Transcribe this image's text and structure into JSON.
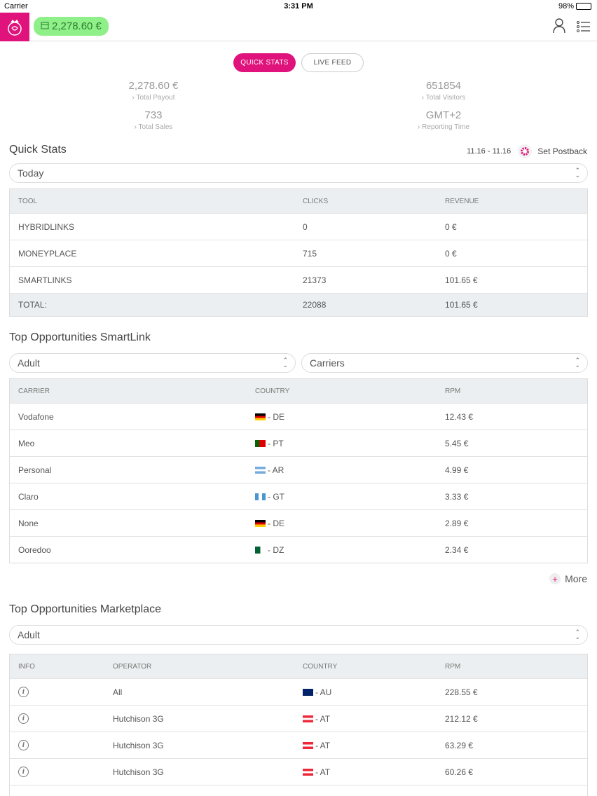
{
  "status_bar": {
    "carrier": "Carrier",
    "time": "3:31 PM",
    "battery": "98%"
  },
  "header": {
    "balance": "2,278.60 €",
    "icons": [
      "logo-icon",
      "user-icon",
      "menu-list-icon"
    ]
  },
  "tabs": {
    "quick_stats": "QUICK STATS",
    "live_feed": "LIVE FEED"
  },
  "summary": {
    "total_payout": {
      "value": "2,278.60 €",
      "label": "Total Payout"
    },
    "total_visitors": {
      "value": "651854",
      "label": "Total Visitors"
    },
    "total_sales": {
      "value": "733",
      "label": "Total Sales"
    },
    "reporting_time": {
      "value": "GMT+2",
      "label": "Reporting Time"
    }
  },
  "quick_stats": {
    "title": "Quick Stats",
    "date_range": "11.16 - 11.16",
    "set_postback": "Set Postback",
    "period": "Today",
    "headers": [
      "TOOL",
      "CLICKS",
      "REVENUE"
    ],
    "rows": [
      [
        "HYBRIDLINKS",
        "0",
        "0 €"
      ],
      [
        "MONEYPLACE",
        "715",
        "0 €"
      ],
      [
        "SMARTLINKS",
        "21373",
        "101.65 €"
      ]
    ],
    "total": [
      "TOTAL:",
      "22088",
      "101.65 €"
    ]
  },
  "smartlink": {
    "title": "Top Opportunities SmartLink",
    "filter_vertical": "Adult",
    "filter_type": "Carriers",
    "headers": [
      "CARRIER",
      "COUNTRY",
      "RPM"
    ],
    "rows": [
      [
        "Vodafone",
        " - DE",
        "12.43 €"
      ],
      [
        "Meo",
        " - PT",
        "5.45 €"
      ],
      [
        "Personal",
        " - AR",
        "4.99 €"
      ],
      [
        "Claro",
        " - GT",
        "3.33 €"
      ],
      [
        "None",
        " - DE",
        "2.89 €"
      ],
      [
        "Ooredoo",
        " - DZ",
        "2.34 €"
      ]
    ],
    "flags": [
      "de",
      "pt",
      "ar",
      "gt",
      "de",
      "dz"
    ],
    "more": "More"
  },
  "marketplace": {
    "title": "Top Opportunities Marketplace",
    "filter_vertical": "Adult",
    "headers": [
      "INFO",
      "OPERATOR",
      "COUNTRY",
      "RPM"
    ],
    "rows": [
      [
        "All",
        " - AU",
        "228.55 €"
      ],
      [
        "Hutchison 3G",
        " - AT",
        "212.12 €"
      ],
      [
        "Hutchison 3G",
        " - AT",
        "63.29 €"
      ],
      [
        "Hutchison 3G",
        " - AT",
        "60.26 €"
      ]
    ],
    "flags": [
      "au",
      "at",
      "at",
      "at"
    ]
  },
  "colors": {
    "brand": "#e0137c",
    "balance_bg": "#8ff08a",
    "table_header_bg": "#eceff1"
  }
}
